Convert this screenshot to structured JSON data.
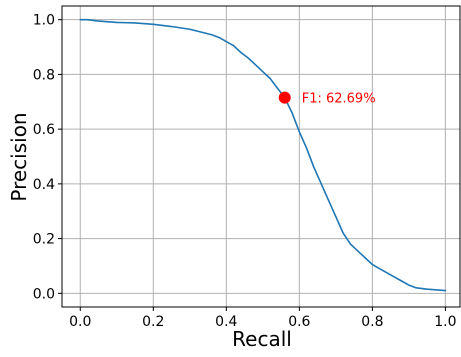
{
  "chart_data": {
    "type": "line",
    "title": "",
    "xlabel": "Recall",
    "ylabel": "Precision",
    "xlim": [
      -0.05,
      1.04
    ],
    "ylim": [
      -0.05,
      1.05
    ],
    "grid": true,
    "x_ticks": [
      0.0,
      0.2,
      0.4,
      0.6,
      0.8,
      1.0
    ],
    "y_ticks": [
      0.0,
      0.2,
      0.4,
      0.6,
      0.8,
      1.0
    ],
    "x_tick_labels": [
      "0.0",
      "0.2",
      "0.4",
      "0.6",
      "0.8",
      "1.0"
    ],
    "y_tick_labels": [
      "0.0",
      "0.2",
      "0.4",
      "0.6",
      "0.8",
      "1.0"
    ],
    "series": [
      {
        "color": "#1f77b4",
        "x": [
          0.0,
          0.02,
          0.05,
          0.1,
          0.15,
          0.2,
          0.25,
          0.3,
          0.33,
          0.36,
          0.38,
          0.4,
          0.42,
          0.44,
          0.46,
          0.48,
          0.5,
          0.52,
          0.54,
          0.56,
          0.58,
          0.6,
          0.62,
          0.64,
          0.66,
          0.68,
          0.7,
          0.72,
          0.74,
          0.76,
          0.78,
          0.8,
          0.82,
          0.84,
          0.86,
          0.88,
          0.9,
          0.92,
          0.95,
          1.0
        ],
        "y": [
          1.0,
          1.0,
          0.995,
          0.99,
          0.988,
          0.983,
          0.975,
          0.965,
          0.955,
          0.945,
          0.935,
          0.92,
          0.905,
          0.88,
          0.86,
          0.835,
          0.81,
          0.785,
          0.75,
          0.715,
          0.66,
          0.59,
          0.53,
          0.46,
          0.4,
          0.34,
          0.28,
          0.22,
          0.18,
          0.155,
          0.13,
          0.105,
          0.09,
          0.075,
          0.06,
          0.045,
          0.03,
          0.02,
          0.015,
          0.01
        ]
      }
    ],
    "marker": {
      "x": 0.56,
      "y": 0.715,
      "color": "#ff0000",
      "label": "F1: 62.69%"
    }
  }
}
